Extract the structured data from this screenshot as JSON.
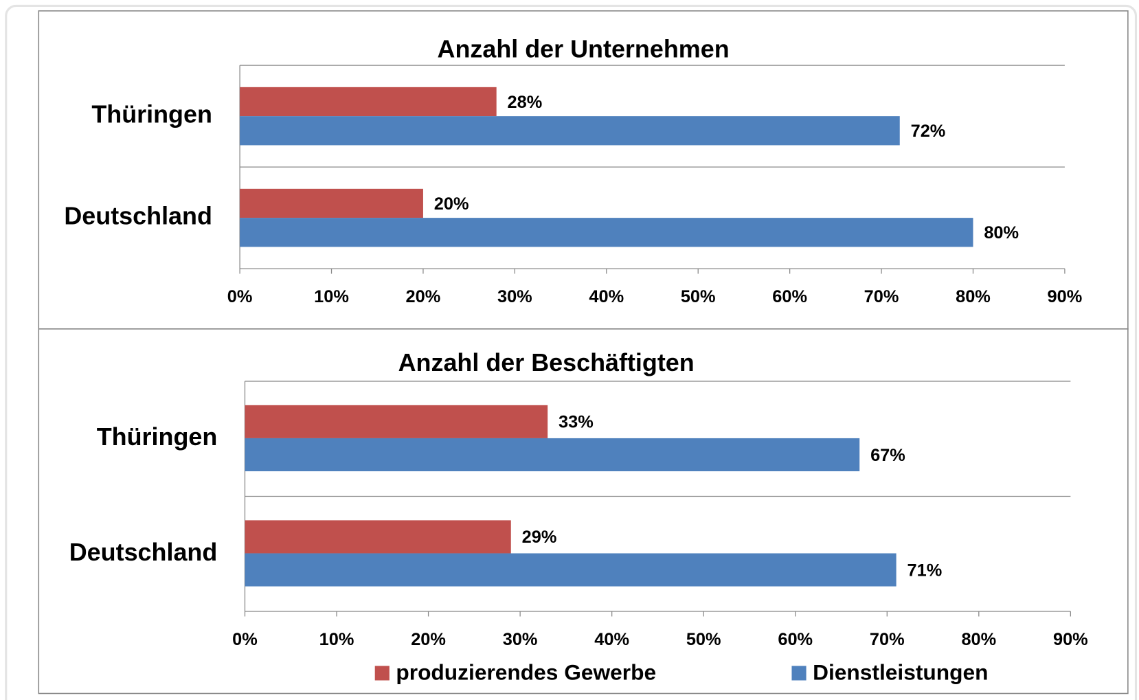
{
  "chart_data": [
    {
      "type": "barh",
      "title": "Anzahl der Unternehmen",
      "categories": [
        "Thüringen",
        "Deutschland"
      ],
      "series": [
        {
          "color": "#c0504d",
          "values": [
            28,
            20
          ],
          "value_labels": [
            "28%",
            "20%"
          ]
        },
        {
          "color": "#4f81bd",
          "values": [
            72,
            80
          ],
          "value_labels": [
            "72%",
            "80%"
          ]
        }
      ],
      "xlim": [
        0,
        90
      ],
      "xticks": [
        {
          "value": 0,
          "label": "0%"
        },
        {
          "value": 10,
          "label": "10%"
        },
        {
          "value": 20,
          "label": "20%"
        },
        {
          "value": 30,
          "label": "30%"
        },
        {
          "value": 40,
          "label": "40%"
        },
        {
          "value": 50,
          "label": "50%"
        },
        {
          "value": 60,
          "label": "60%"
        },
        {
          "value": 70,
          "label": "70%"
        },
        {
          "value": 80,
          "label": "80%"
        },
        {
          "value": 90,
          "label": "90%"
        }
      ]
    },
    {
      "type": "barh",
      "title": "Anzahl der Beschäftigten",
      "categories": [
        "Thüringen",
        "Deutschland"
      ],
      "series": [
        {
          "name": "produzierendes Gewerbe",
          "color": "#c0504d",
          "values": [
            33,
            29
          ],
          "value_labels": [
            "33%",
            "29%"
          ]
        },
        {
          "name": "Dienstleistungen",
          "color": "#4f81bd",
          "values": [
            67,
            71
          ],
          "value_labels": [
            "67%",
            "71%"
          ]
        }
      ],
      "xlim": [
        0,
        90
      ],
      "xticks": [
        {
          "value": 0,
          "label": "0%"
        },
        {
          "value": 10,
          "label": "10%"
        },
        {
          "value": 20,
          "label": "20%"
        },
        {
          "value": 30,
          "label": "30%"
        },
        {
          "value": 40,
          "label": "40%"
        },
        {
          "value": 50,
          "label": "50%"
        },
        {
          "value": 60,
          "label": "60%"
        },
        {
          "value": 70,
          "label": "70%"
        },
        {
          "value": 80,
          "label": "80%"
        },
        {
          "value": 90,
          "label": "90%"
        }
      ],
      "legend": "bottom"
    }
  ]
}
